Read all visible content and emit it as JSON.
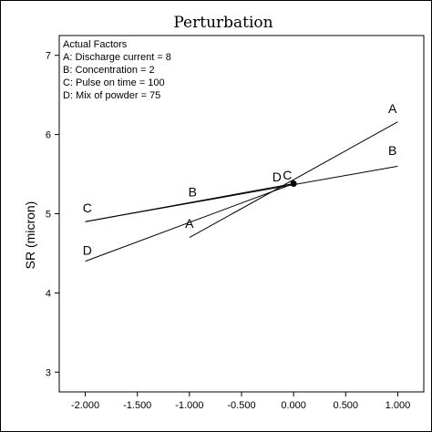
{
  "chart_data": {
    "type": "line",
    "title": "Perturbation",
    "xlabel": "",
    "ylabel": "SR (micron)",
    "xlim": [
      -2.25,
      1.25
    ],
    "ylim": [
      2.75,
      7.25
    ],
    "x_ticks": [
      -2.0,
      -1.5,
      -1.0,
      -0.5,
      0.0,
      0.5,
      1.0
    ],
    "x_tick_labels": [
      "-2.000",
      "-1.500",
      "-1.000",
      "-0.500",
      "0.000",
      "0.500",
      "1.000"
    ],
    "y_ticks": [
      3,
      4,
      5,
      6,
      7
    ],
    "y_tick_labels": [
      "3",
      "4",
      "5",
      "6",
      "7"
    ],
    "grid": false,
    "legend": "none",
    "factors_box": {
      "heading": "Actual Factors",
      "lines": [
        "A: Discharge current = 8",
        "B: Concentration = 2",
        "C: Pulse on time = 100",
        "D: Mix of powder = 75"
      ]
    },
    "reference_point": {
      "x": 0.0,
      "y": 5.38
    },
    "series": [
      {
        "name": "A",
        "x": [
          -1.0,
          1.0
        ],
        "y": [
          4.7,
          6.16
        ],
        "labels": [
          {
            "text": "A",
            "x": -1.0,
            "y": 4.82
          },
          {
            "text": "A",
            "x": 0.95,
            "y": 6.27
          }
        ]
      },
      {
        "name": "B",
        "x": [
          -2.0,
          1.0
        ],
        "y": [
          4.9,
          5.6
        ],
        "labels": [
          {
            "text": "B",
            "x": -0.97,
            "y": 5.22
          },
          {
            "text": "B",
            "x": 0.95,
            "y": 5.74
          }
        ]
      },
      {
        "name": "C",
        "x": [
          -2.0,
          0.0
        ],
        "y": [
          4.9,
          5.38
        ],
        "labels": [
          {
            "text": "C",
            "x": -1.98,
            "y": 5.02
          },
          {
            "text": "C",
            "x": -0.06,
            "y": 5.43
          }
        ]
      },
      {
        "name": "D",
        "x": [
          -2.0,
          0.0
        ],
        "y": [
          4.4,
          5.38
        ],
        "labels": [
          {
            "text": "D",
            "x": -1.98,
            "y": 4.48
          },
          {
            "text": "D",
            "x": -0.16,
            "y": 5.41
          }
        ]
      }
    ]
  }
}
